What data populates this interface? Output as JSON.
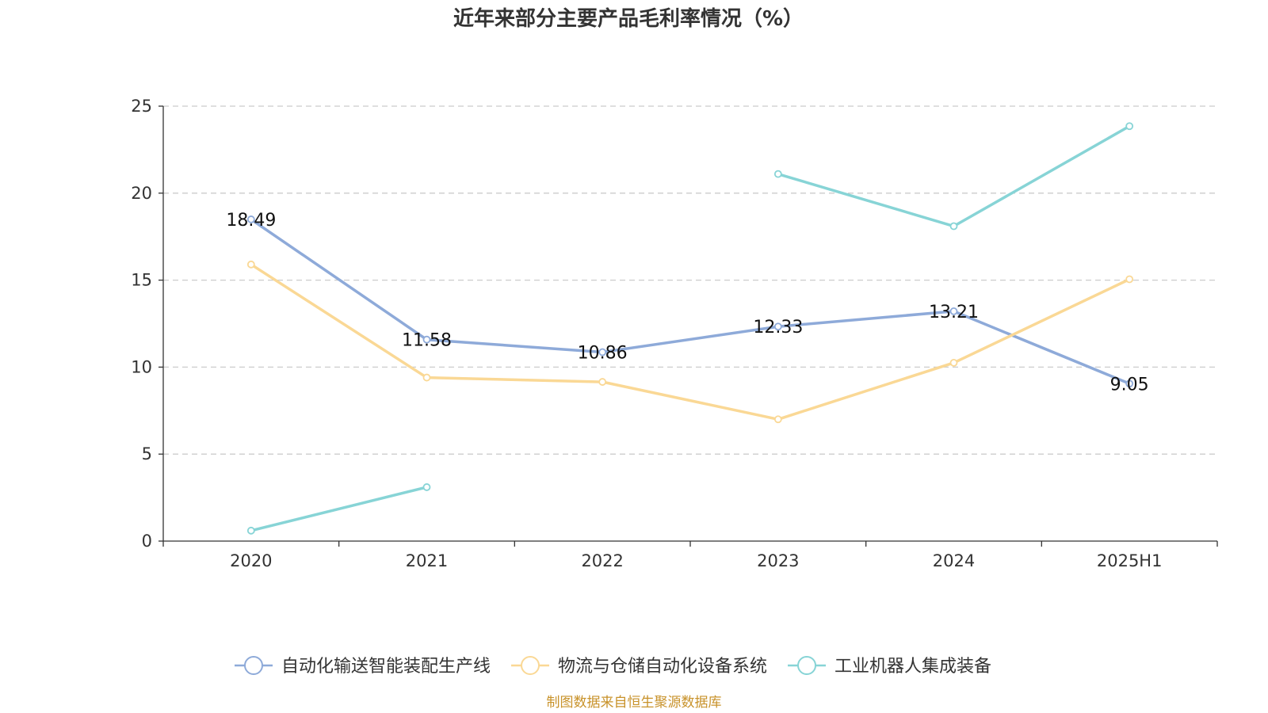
{
  "chart_data": {
    "type": "line",
    "title": "近年来部分主要产品毛利率情况（%）",
    "categories": [
      "2020",
      "2021",
      "2022",
      "2023",
      "2024",
      "2025H1"
    ],
    "ylim": [
      0,
      25
    ],
    "yticks": [
      "0",
      "5",
      "10",
      "15",
      "20",
      "25"
    ],
    "grid": true,
    "legend_position": "bottom",
    "series": [
      {
        "name": "自动化输送智能装配生产线",
        "color": "#8eaad9",
        "values": [
          18.49,
          11.58,
          10.86,
          12.33,
          13.21,
          9.05
        ],
        "labels": [
          "18.49",
          "11.58",
          "10.86",
          "12.33",
          "13.21",
          "9.05"
        ]
      },
      {
        "name": "物流与仓储自动化设备系统",
        "color": "#fad895",
        "values": [
          15.9,
          9.4,
          9.15,
          7.0,
          10.25,
          15.05
        ],
        "labels": []
      },
      {
        "name": "工业机器人集成装备",
        "color": "#87d4d6",
        "values": [
          0.6,
          3.1,
          null,
          21.1,
          18.1,
          23.85
        ],
        "labels": []
      }
    ]
  },
  "source_text": "制图数据来自恒生聚源数据库"
}
